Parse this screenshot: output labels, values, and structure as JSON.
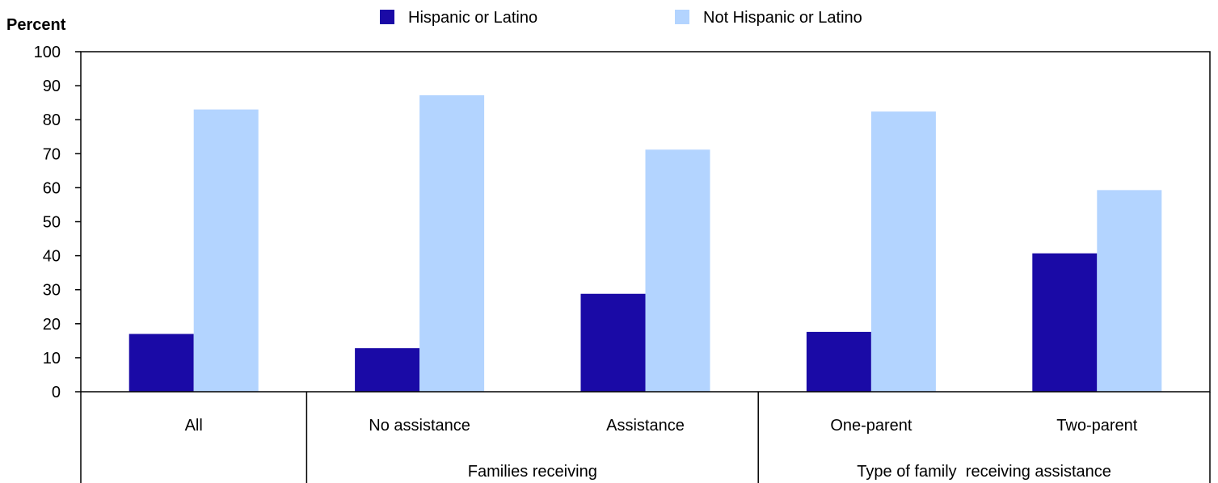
{
  "chart_data": {
    "type": "bar",
    "ylabel": "Percent",
    "ylim": [
      0,
      100
    ],
    "yticks": [
      0,
      10,
      20,
      30,
      40,
      50,
      60,
      70,
      80,
      90,
      100
    ],
    "categories": [
      "All",
      "No assistance",
      "Assistance",
      "One-parent",
      "Two-parent"
    ],
    "groups": [
      {
        "label": "",
        "categories": [
          "All"
        ]
      },
      {
        "label": "Families receiving",
        "categories": [
          "No assistance",
          "Assistance"
        ]
      },
      {
        "label": "Type of family  receiving assistance",
        "categories": [
          "One-parent",
          "Two-parent"
        ]
      }
    ],
    "series": [
      {
        "name": "Hispanic or Latino",
        "color": "#1a0aa6",
        "values": [
          17,
          12.8,
          28.8,
          17.6,
          40.7
        ]
      },
      {
        "name": "Not Hispanic or Latino",
        "color": "#b3d4ff",
        "values": [
          83,
          87.2,
          71.2,
          82.4,
          59.3
        ]
      }
    ],
    "legend_position": "top",
    "grid": false
  }
}
